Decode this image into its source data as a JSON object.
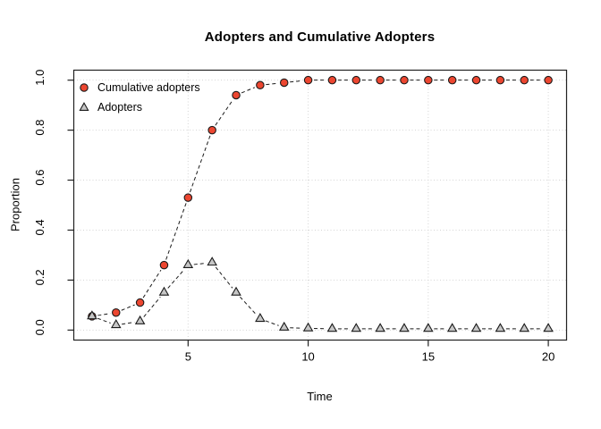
{
  "chart_data": {
    "type": "line",
    "title": "Adopters and Cumulative Adopters",
    "xlabel": "Time",
    "ylabel": "Proportion",
    "x": [
      1,
      2,
      3,
      4,
      5,
      6,
      7,
      8,
      9,
      10,
      11,
      12,
      13,
      14,
      15,
      16,
      17,
      18,
      19,
      20
    ],
    "series": [
      {
        "name": "Cumulative adopters",
        "marker": "circle",
        "marker_fill": "#ec4630",
        "values": [
          0.055,
          0.07,
          0.11,
          0.26,
          0.53,
          0.8,
          0.94,
          0.98,
          0.99,
          1.0,
          1.0,
          1.0,
          1.0,
          1.0,
          1.0,
          1.0,
          1.0,
          1.0,
          1.0,
          1.0
        ]
      },
      {
        "name": "Adopters",
        "marker": "triangle",
        "marker_fill": "#c6c6c6",
        "values": [
          0.055,
          0.02,
          0.035,
          0.15,
          0.26,
          0.27,
          0.15,
          0.045,
          0.01,
          0.007,
          0.005,
          0.005,
          0.005,
          0.005,
          0.005,
          0.005,
          0.005,
          0.005,
          0.005,
          0.005
        ]
      }
    ],
    "x_ticks": [
      "5",
      "10",
      "15",
      "20"
    ],
    "x_tick_values": [
      5,
      10,
      15,
      20
    ],
    "y_ticks": [
      "0.0",
      "0.2",
      "0.4",
      "0.6",
      "0.8",
      "1.0"
    ],
    "y_tick_values": [
      0.0,
      0.2,
      0.4,
      0.6,
      0.8,
      1.0
    ],
    "xlim": [
      1,
      20
    ],
    "ylim": [
      0,
      1
    ],
    "grid": "dotted",
    "line_style": "dashed",
    "line_color": "#1a1a1a",
    "grid_color": "#d4d4d4",
    "axis_color": "#222222",
    "legend_position": "top-left"
  }
}
